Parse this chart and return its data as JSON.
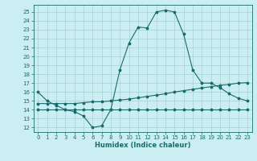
{
  "xlabel": "Humidex (Indice chaleur)",
  "background_color": "#cbeef3",
  "line_color": "#1a6b6b",
  "xlim": [
    -0.5,
    23.5
  ],
  "ylim": [
    11.5,
    25.8
  ],
  "yticks": [
    12,
    13,
    14,
    15,
    16,
    17,
    18,
    19,
    20,
    21,
    22,
    23,
    24,
    25
  ],
  "xticks": [
    0,
    1,
    2,
    3,
    4,
    5,
    6,
    7,
    8,
    9,
    10,
    11,
    12,
    13,
    14,
    15,
    16,
    17,
    18,
    19,
    20,
    21,
    22,
    23
  ],
  "line1_x": [
    0,
    1,
    2,
    3,
    4,
    5,
    6,
    7,
    8,
    9,
    10,
    11,
    12,
    13,
    14,
    15,
    16,
    17,
    18,
    19,
    20,
    21,
    22,
    23
  ],
  "line1_y": [
    16.0,
    15.0,
    14.5,
    14.0,
    13.8,
    13.3,
    12.0,
    12.2,
    14.0,
    18.5,
    21.5,
    23.3,
    23.2,
    25.0,
    25.2,
    25.0,
    22.5,
    18.5,
    17.0,
    17.0,
    16.5,
    15.8,
    15.3,
    15.0
  ],
  "line2_x": [
    0,
    1,
    2,
    3,
    4,
    5,
    6,
    7,
    8,
    9,
    10,
    11,
    12,
    13,
    14,
    15,
    16,
    17,
    18,
    19,
    20,
    21,
    22,
    23
  ],
  "line2_y": [
    14.0,
    14.0,
    14.0,
    14.0,
    14.0,
    14.0,
    14.0,
    14.0,
    14.0,
    14.0,
    14.0,
    14.0,
    14.0,
    14.0,
    14.0,
    14.0,
    14.0,
    14.0,
    14.0,
    14.0,
    14.0,
    14.0,
    14.0,
    14.0
  ],
  "line3_x": [
    0,
    1,
    2,
    3,
    4,
    5,
    6,
    7,
    8,
    9,
    10,
    11,
    12,
    13,
    14,
    15,
    16,
    17,
    18,
    19,
    20,
    21,
    22,
    23
  ],
  "line3_y": [
    14.7,
    14.7,
    14.7,
    14.7,
    14.7,
    14.8,
    14.9,
    14.9,
    15.0,
    15.1,
    15.2,
    15.35,
    15.5,
    15.65,
    15.8,
    16.0,
    16.15,
    16.3,
    16.45,
    16.6,
    16.75,
    16.85,
    17.0,
    17.05
  ],
  "tick_fontsize": 5.0,
  "xlabel_fontsize": 6.0,
  "grid_color": "#8bbcbc",
  "grid_alpha": 0.7,
  "grid_linewidth": 0.4,
  "line_linewidth": 0.8,
  "marker_size": 2.5
}
